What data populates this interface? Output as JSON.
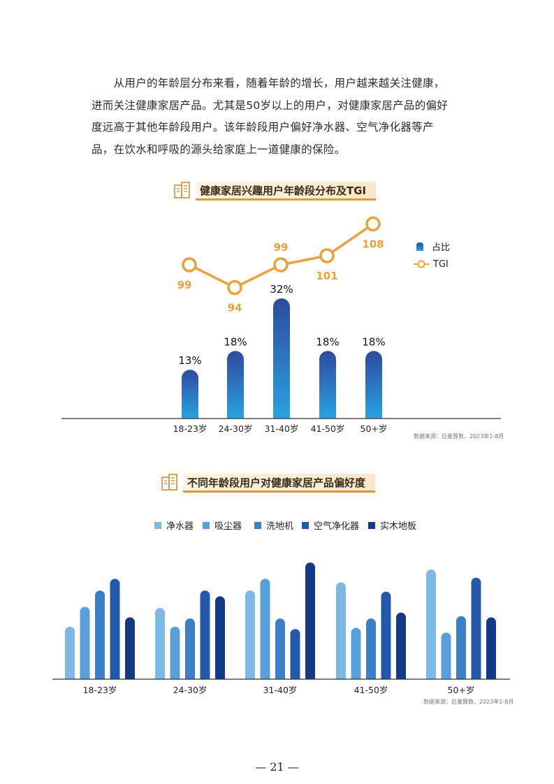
{
  "paragraph": [
    "　　从用户的年龄层分布来看，随着年龄的增长，用户越来越关注健康，",
    "进而关注健康家居产品。尤其是50岁以上的用户，对健康家居产品的偏好",
    "度远高于其他年龄段用户。该年龄段用户偏好净水器、空气净化器等产",
    "品，在饮水和呼吸的源头给家庭上一道健康的保险。"
  ],
  "chart1": {
    "title": "健康家居兴趣用户年龄段分布及TGI",
    "legend": [
      {
        "label": "占比",
        "icon": "bar-legend-icon"
      },
      {
        "label": "TGI",
        "icon": "line-legend-icon"
      }
    ],
    "source": "数据来源：巨量算数，2023年1-8月"
  },
  "chart2": {
    "title": "不同年龄段用户对健康家居产品偏好度",
    "source": "数据来源：巨量算数，2023年1-8月"
  },
  "page_number": "— 21 —",
  "colors": {
    "bar_top": "#2e4a9e",
    "bar_bottom": "#29a3e0",
    "tgi_line": "#e8a13b",
    "p1": "#7eb9e6",
    "p2": "#5b9fd8",
    "p3": "#3d7fc4",
    "p4": "#2458a8",
    "p5": "#143a87"
  },
  "chart_data": [
    {
      "type": "bar+line",
      "title": "健康家居兴趣用户年龄段分布及TGI",
      "categories": [
        "18-23岁",
        "24-30岁",
        "31-40岁",
        "41-50岁",
        "50+岁"
      ],
      "series": [
        {
          "name": "占比",
          "kind": "bar",
          "values": [
            13,
            18,
            32,
            18,
            18
          ],
          "labels": [
            "13%",
            "18%",
            "32%",
            "18%",
            "18%"
          ]
        },
        {
          "name": "TGI",
          "kind": "line",
          "values": [
            99,
            94,
            99,
            101,
            108
          ],
          "labels": [
            "99",
            "94",
            "99",
            "101",
            "108"
          ]
        }
      ],
      "legend": "right"
    },
    {
      "type": "bar",
      "title": "不同年龄段用户对健康家居产品偏好度",
      "categories": [
        "18-23岁",
        "24-30岁",
        "31-40岁",
        "41-50岁",
        "50+岁"
      ],
      "series": [
        {
          "name": "净水器",
          "values": [
            45,
            61,
            76,
            83,
            94
          ]
        },
        {
          "name": "吸尘器",
          "values": [
            62,
            45,
            86,
            44,
            40
          ]
        },
        {
          "name": "洗地机",
          "values": [
            76,
            52,
            52,
            52,
            54
          ]
        },
        {
          "name": "空气净化器",
          "values": [
            86,
            76,
            43,
            75,
            87
          ]
        },
        {
          "name": "实木地板",
          "values": [
            53,
            71,
            100,
            57,
            53
          ]
        }
      ],
      "legend": "top"
    }
  ]
}
